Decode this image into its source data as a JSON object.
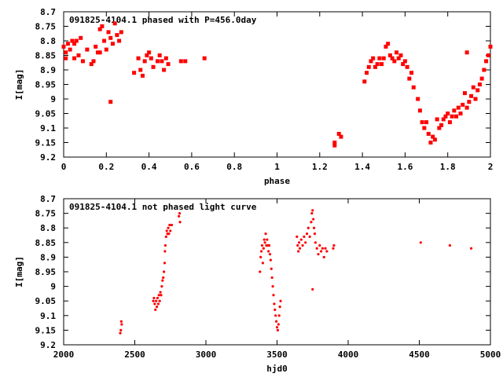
{
  "chart_data": [
    {
      "type": "scatter",
      "title": "091825-4104.1 phased with P=456.0day",
      "xlabel": "phase",
      "ylabel": "I[mag]",
      "xlim": [
        0,
        2
      ],
      "ylim": [
        8.7,
        9.2
      ],
      "y_inverted": true,
      "grid": false,
      "marker_color": "#ff0000",
      "marker": "filled-square",
      "xticks": [
        "0",
        "0.2",
        "0.4",
        "0.6",
        "0.8",
        "1",
        "1.2",
        "1.4",
        "1.6",
        "1.8",
        "2"
      ],
      "yticks": [
        "8.7",
        "8.75",
        "8.8",
        "8.85",
        "8.9",
        "8.95",
        "9",
        "9.05",
        "9.1",
        "9.15",
        "9.2"
      ],
      "points": [
        [
          0.0,
          8.82
        ],
        [
          0.01,
          8.84
        ],
        [
          0.01,
          8.86
        ],
        [
          0.02,
          8.81
        ],
        [
          0.03,
          8.83
        ],
        [
          0.04,
          8.8
        ],
        [
          0.05,
          8.81
        ],
        [
          0.05,
          8.86
        ],
        [
          0.06,
          8.8
        ],
        [
          0.07,
          8.85
        ],
        [
          0.08,
          8.79
        ],
        [
          0.09,
          8.87
        ],
        [
          0.11,
          8.83
        ],
        [
          0.13,
          8.88
        ],
        [
          0.14,
          8.87
        ],
        [
          0.15,
          8.82
        ],
        [
          0.16,
          8.84
        ],
        [
          0.17,
          8.76
        ],
        [
          0.17,
          8.84
        ],
        [
          0.18,
          8.75
        ],
        [
          0.19,
          8.8
        ],
        [
          0.2,
          8.83
        ],
        [
          0.21,
          8.77
        ],
        [
          0.22,
          8.79
        ],
        [
          0.22,
          9.01
        ],
        [
          0.23,
          8.81
        ],
        [
          0.24,
          8.74
        ],
        [
          0.25,
          8.78
        ],
        [
          0.26,
          8.8
        ],
        [
          0.27,
          8.77
        ],
        [
          0.33,
          8.91
        ],
        [
          0.35,
          8.86
        ],
        [
          0.36,
          8.9
        ],
        [
          0.37,
          8.92
        ],
        [
          0.38,
          8.87
        ],
        [
          0.39,
          8.85
        ],
        [
          0.4,
          8.84
        ],
        [
          0.41,
          8.86
        ],
        [
          0.42,
          8.89
        ],
        [
          0.44,
          8.87
        ],
        [
          0.45,
          8.85
        ],
        [
          0.46,
          8.87
        ],
        [
          0.47,
          8.9
        ],
        [
          0.48,
          8.86
        ],
        [
          0.49,
          8.88
        ],
        [
          0.55,
          8.87
        ],
        [
          0.57,
          8.87
        ],
        [
          0.66,
          8.86
        ],
        [
          1.27,
          9.15
        ],
        [
          1.27,
          9.16
        ],
        [
          1.29,
          9.12
        ],
        [
          1.3,
          9.13
        ],
        [
          1.41,
          8.94
        ],
        [
          1.42,
          8.91
        ],
        [
          1.43,
          8.89
        ],
        [
          1.44,
          8.87
        ],
        [
          1.45,
          8.86
        ],
        [
          1.46,
          8.89
        ],
        [
          1.47,
          8.88
        ],
        [
          1.48,
          8.86
        ],
        [
          1.49,
          8.88
        ],
        [
          1.5,
          8.86
        ],
        [
          1.51,
          8.82
        ],
        [
          1.52,
          8.81
        ],
        [
          1.53,
          8.85
        ],
        [
          1.54,
          8.86
        ],
        [
          1.55,
          8.87
        ],
        [
          1.56,
          8.84
        ],
        [
          1.57,
          8.86
        ],
        [
          1.58,
          8.85
        ],
        [
          1.59,
          8.88
        ],
        [
          1.6,
          8.87
        ],
        [
          1.61,
          8.89
        ],
        [
          1.62,
          8.93
        ],
        [
          1.63,
          8.91
        ],
        [
          1.64,
          8.96
        ],
        [
          1.66,
          9.0
        ],
        [
          1.67,
          9.04
        ],
        [
          1.68,
          9.08
        ],
        [
          1.69,
          9.1
        ],
        [
          1.7,
          9.08
        ],
        [
          1.71,
          9.12
        ],
        [
          1.72,
          9.15
        ],
        [
          1.73,
          9.13
        ],
        [
          1.74,
          9.14
        ],
        [
          1.75,
          9.07
        ],
        [
          1.76,
          9.1
        ],
        [
          1.77,
          9.09
        ],
        [
          1.78,
          9.07
        ],
        [
          1.79,
          9.06
        ],
        [
          1.8,
          9.05
        ],
        [
          1.81,
          9.08
        ],
        [
          1.82,
          9.06
        ],
        [
          1.83,
          9.04
        ],
        [
          1.84,
          9.06
        ],
        [
          1.85,
          9.03
        ],
        [
          1.86,
          9.05
        ],
        [
          1.87,
          9.02
        ],
        [
          1.88,
          8.98
        ],
        [
          1.89,
          9.03
        ],
        [
          1.9,
          9.01
        ],
        [
          1.91,
          8.99
        ],
        [
          1.92,
          8.96
        ],
        [
          1.93,
          9.0
        ],
        [
          1.94,
          8.97
        ],
        [
          1.95,
          8.95
        ],
        [
          1.96,
          8.93
        ],
        [
          1.97,
          8.9
        ],
        [
          1.98,
          8.87
        ],
        [
          1.99,
          8.85
        ],
        [
          2.0,
          8.82
        ],
        [
          1.89,
          8.84
        ]
      ]
    },
    {
      "type": "scatter",
      "title": "091825-4104.1 not phased light curve",
      "xlabel": "hjd0",
      "ylabel": "I[mag]",
      "xlim": [
        2000,
        5000
      ],
      "ylim": [
        8.7,
        9.2
      ],
      "y_inverted": true,
      "grid": false,
      "marker_color": "#ff0000",
      "marker": "small-dot",
      "xticks": [
        "2000",
        "2500",
        "3000",
        "3500",
        "4000",
        "4500",
        "5000"
      ],
      "yticks": [
        "8.7",
        "8.75",
        "8.8",
        "8.85",
        "8.9",
        "8.95",
        "9",
        "9.05",
        "9.1",
        "9.15",
        "9.2"
      ],
      "points": [
        [
          2398,
          9.16
        ],
        [
          2402,
          9.15
        ],
        [
          2405,
          9.12
        ],
        [
          2408,
          9.13
        ],
        [
          2630,
          9.05
        ],
        [
          2635,
          9.04
        ],
        [
          2640,
          9.06
        ],
        [
          2645,
          9.08
        ],
        [
          2650,
          9.05
        ],
        [
          2655,
          9.07
        ],
        [
          2660,
          9.04
        ],
        [
          2665,
          9.06
        ],
        [
          2670,
          9.03
        ],
        [
          2675,
          9.05
        ],
        [
          2680,
          9.02
        ],
        [
          2685,
          9.03
        ],
        [
          2690,
          9.0
        ],
        [
          2695,
          8.98
        ],
        [
          2700,
          8.97
        ],
        [
          2705,
          8.95
        ],
        [
          2710,
          8.92
        ],
        [
          2712,
          8.88
        ],
        [
          2715,
          8.86
        ],
        [
          2720,
          8.83
        ],
        [
          2725,
          8.81
        ],
        [
          2730,
          8.82
        ],
        [
          2735,
          8.8
        ],
        [
          2740,
          8.82
        ],
        [
          2745,
          8.79
        ],
        [
          2750,
          8.81
        ],
        [
          2760,
          8.79
        ],
        [
          2810,
          8.76
        ],
        [
          2815,
          8.75
        ],
        [
          2818,
          8.78
        ],
        [
          3380,
          8.95
        ],
        [
          3385,
          8.9
        ],
        [
          3390,
          8.88
        ],
        [
          3395,
          8.86
        ],
        [
          3400,
          8.92
        ],
        [
          3405,
          8.87
        ],
        [
          3410,
          8.84
        ],
        [
          3415,
          8.85
        ],
        [
          3420,
          8.82
        ],
        [
          3425,
          8.86
        ],
        [
          3430,
          8.84
        ],
        [
          3435,
          8.86
        ],
        [
          3440,
          8.88
        ],
        [
          3445,
          8.86
        ],
        [
          3450,
          8.89
        ],
        [
          3455,
          8.91
        ],
        [
          3460,
          8.94
        ],
        [
          3465,
          8.97
        ],
        [
          3470,
          9.0
        ],
        [
          3475,
          9.03
        ],
        [
          3480,
          9.06
        ],
        [
          3485,
          9.08
        ],
        [
          3490,
          9.1
        ],
        [
          3495,
          9.12
        ],
        [
          3500,
          9.14
        ],
        [
          3505,
          9.15
        ],
        [
          3510,
          9.13
        ],
        [
          3515,
          9.1
        ],
        [
          3520,
          9.07
        ],
        [
          3525,
          9.05
        ],
        [
          3640,
          8.83
        ],
        [
          3645,
          8.86
        ],
        [
          3650,
          8.88
        ],
        [
          3655,
          8.85
        ],
        [
          3660,
          8.87
        ],
        [
          3670,
          8.84
        ],
        [
          3680,
          8.86
        ],
        [
          3690,
          8.83
        ],
        [
          3700,
          8.85
        ],
        [
          3710,
          8.82
        ],
        [
          3720,
          8.8
        ],
        [
          3730,
          8.83
        ],
        [
          3740,
          8.78
        ],
        [
          3745,
          8.75
        ],
        [
          3750,
          8.74
        ],
        [
          3755,
          8.77
        ],
        [
          3760,
          8.8
        ],
        [
          3765,
          8.82
        ],
        [
          3770,
          8.85
        ],
        [
          3780,
          8.87
        ],
        [
          3790,
          8.89
        ],
        [
          3800,
          8.86
        ],
        [
          3810,
          8.88
        ],
        [
          3820,
          8.87
        ],
        [
          3830,
          8.9
        ],
        [
          3840,
          8.87
        ],
        [
          3850,
          8.88
        ],
        [
          3895,
          8.87
        ],
        [
          3900,
          8.86
        ],
        [
          3750,
          9.01
        ],
        [
          4510,
          8.85
        ],
        [
          4715,
          8.86
        ],
        [
          4865,
          8.87
        ]
      ]
    }
  ]
}
